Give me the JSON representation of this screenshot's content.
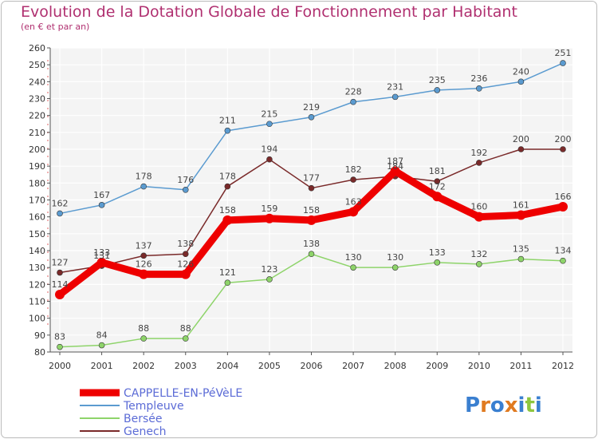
{
  "header": {
    "title": "Evolution de la Dotation Globale de Fonctionnement par Habitant",
    "subtitle": "(en € et par an)"
  },
  "logo": {
    "text": "Proxiti"
  },
  "chart_data": {
    "type": "line",
    "title": "Evolution de la Dotation Globale de Fonctionnement par Habitant",
    "subtitle": "(en € et par an)",
    "xlabel": "",
    "ylabel": "",
    "x": [
      "2000",
      "2001",
      "2002",
      "2003",
      "2004",
      "2005",
      "2006",
      "2007",
      "2008",
      "2009",
      "2010",
      "2011",
      "2012"
    ],
    "ylim": [
      80,
      260
    ],
    "yticks": [
      80,
      90,
      100,
      110,
      120,
      130,
      140,
      150,
      160,
      170,
      180,
      190,
      200,
      210,
      220,
      230,
      240,
      250,
      260
    ],
    "grid": true,
    "legend": "bottom-left",
    "series": [
      {
        "name": "CAPPELLE-EN-PéVèLE",
        "color": "#ee0000",
        "values": [
          114,
          133,
          126,
          126,
          158,
          159,
          158,
          163,
          187,
          172,
          160,
          161,
          166
        ],
        "labels": [
          "114",
          "133",
          "126",
          "126",
          "158",
          "159",
          "158",
          "163",
          "187",
          "172",
          "160",
          "161",
          "166"
        ]
      },
      {
        "name": "Templeuve",
        "color": "#5b9bd0",
        "values": [
          162,
          167,
          178,
          176,
          211,
          215,
          219,
          228,
          231,
          235,
          236,
          240,
          251
        ],
        "labels": [
          "162",
          "167",
          "178",
          "176",
          "211",
          "215",
          "219",
          "228",
          "231",
          "235",
          "236",
          "240",
          "251"
        ]
      },
      {
        "name": "Bersée",
        "color": "#8ed46a",
        "values": [
          83,
          84,
          88,
          88,
          121,
          123,
          138,
          130,
          130,
          133,
          132,
          135,
          134
        ],
        "labels": [
          "83",
          "84",
          "88",
          "88",
          "121",
          "123",
          "138",
          "130",
          "130",
          "133",
          "132",
          "135",
          "134"
        ]
      },
      {
        "name": "Genech",
        "color": "#7a2a2a",
        "values": [
          127,
          131,
          137,
          138,
          178,
          194,
          177,
          182,
          184,
          181,
          192,
          200,
          200
        ],
        "labels": [
          "127",
          "131",
          "137",
          "138",
          "178",
          "194",
          "177",
          "182",
          "184",
          "181",
          "192",
          "200",
          "200"
        ]
      }
    ]
  }
}
